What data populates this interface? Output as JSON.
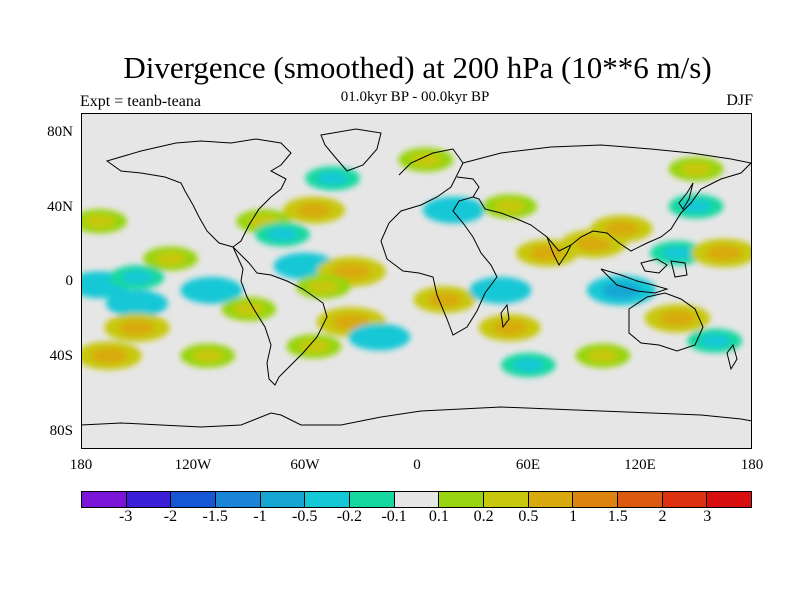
{
  "title": "Divergence (smoothed) at 200 hPa (10**6 m/s)",
  "subtitle": "01.0kyr BP - 00.0kyr BP",
  "left_note": "Expt = teanb-teana",
  "right_note": "DJF",
  "axes": {
    "lat_ticks": [
      "80N",
      "40N",
      "0",
      "40S",
      "80S"
    ],
    "lon_ticks": [
      "180",
      "120W",
      "60W",
      "0",
      "60E",
      "120E",
      "180"
    ]
  },
  "colorbar": {
    "colors": [
      "#7b16d9",
      "#3a1fd6",
      "#1657d6",
      "#1a84d6",
      "#16a6d4",
      "#15c8d6",
      "#15d8a0",
      "#e6e6e6",
      "#98d40f",
      "#c8c80f",
      "#d8aa0f",
      "#dc840f",
      "#dc5a0f",
      "#dc320f",
      "#d80f0f"
    ],
    "labels": [
      "-3",
      "-2",
      "-1.5",
      "-1",
      "-0.5",
      "-0.2",
      "-0.1",
      "0.1",
      "0.2",
      "0.5",
      "1",
      "1.5",
      "2",
      "3"
    ]
  },
  "map": {
    "background": "#e6e6e6",
    "regions": [
      {
        "lon": -170,
        "lat": 32,
        "level": 0.3
      },
      {
        "lon": -132,
        "lat": 12,
        "level": 0.3
      },
      {
        "lon": -170,
        "lat": -2,
        "level": -0.5
      },
      {
        "lon": -150,
        "lat": -12,
        "level": -0.5
      },
      {
        "lon": -150,
        "lat": 2,
        "level": -0.3
      },
      {
        "lon": -110,
        "lat": -5,
        "level": -0.5
      },
      {
        "lon": -150,
        "lat": -25,
        "level": 0.6
      },
      {
        "lon": -165,
        "lat": -40,
        "level": 0.6
      },
      {
        "lon": -112,
        "lat": -40,
        "level": 0.3
      },
      {
        "lon": -90,
        "lat": -15,
        "level": 0.3
      },
      {
        "lon": -82,
        "lat": 32,
        "level": 0.3
      },
      {
        "lon": -55,
        "lat": 38,
        "level": 0.5
      },
      {
        "lon": -72,
        "lat": 25,
        "level": -0.3
      },
      {
        "lon": -60,
        "lat": 8,
        "level": -0.5
      },
      {
        "lon": -35,
        "lat": 5,
        "level": 0.7
      },
      {
        "lon": -50,
        "lat": -3,
        "level": 0.3
      },
      {
        "lon": -35,
        "lat": -22,
        "level": 0.7
      },
      {
        "lon": -20,
        "lat": -30,
        "level": -0.5
      },
      {
        "lon": -55,
        "lat": -35,
        "level": 0.3
      },
      {
        "lon": -45,
        "lat": 55,
        "level": -0.3
      },
      {
        "lon": 5,
        "lat": 65,
        "level": 0.3
      },
      {
        "lon": 20,
        "lat": 38,
        "level": -0.5
      },
      {
        "lon": 50,
        "lat": 40,
        "level": 0.3
      },
      {
        "lon": 15,
        "lat": -10,
        "level": 0.5
      },
      {
        "lon": 45,
        "lat": -5,
        "level": -0.5
      },
      {
        "lon": 50,
        "lat": -25,
        "level": 0.5
      },
      {
        "lon": 60,
        "lat": -45,
        "level": -0.3
      },
      {
        "lon": 70,
        "lat": 15,
        "level": 0.5
      },
      {
        "lon": 95,
        "lat": 20,
        "level": 0.6
      },
      {
        "lon": 110,
        "lat": 28,
        "level": 0.5
      },
      {
        "lon": 110,
        "lat": -5,
        "level": -0.7
      },
      {
        "lon": 140,
        "lat": 15,
        "level": -0.3
      },
      {
        "lon": 150,
        "lat": 40,
        "level": -0.3
      },
      {
        "lon": 165,
        "lat": 15,
        "level": 0.6
      },
      {
        "lon": 140,
        "lat": -20,
        "level": 0.6
      },
      {
        "lon": 160,
        "lat": -32,
        "level": -0.3
      },
      {
        "lon": 150,
        "lat": 60,
        "level": 0.3
      },
      {
        "lon": 100,
        "lat": -40,
        "level": 0.3
      }
    ]
  }
}
